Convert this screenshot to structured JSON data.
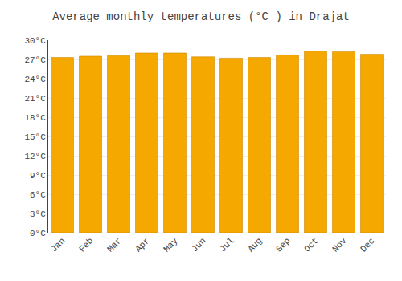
{
  "chart_data": {
    "type": "bar",
    "title": "Average monthly temperatures (°C ) in Drajat",
    "categories": [
      "Jan",
      "Feb",
      "Mar",
      "Apr",
      "May",
      "Jun",
      "Jul",
      "Aug",
      "Sep",
      "Oct",
      "Nov",
      "Dec"
    ],
    "values": [
      27.3,
      27.5,
      27.6,
      28.0,
      28.0,
      27.4,
      27.2,
      27.3,
      27.7,
      28.3,
      28.2,
      27.8
    ],
    "color": "#F5A800",
    "ylim": [
      0,
      30
    ],
    "yticks": [
      {
        "value": 0,
        "label": "0°C"
      },
      {
        "value": 3,
        "label": "3°C"
      },
      {
        "value": 6,
        "label": "6°C"
      },
      {
        "value": 9,
        "label": "9°C"
      },
      {
        "value": 12,
        "label": "12°C"
      },
      {
        "value": 15,
        "label": "15°C"
      },
      {
        "value": 18,
        "label": "18°C"
      },
      {
        "value": 21,
        "label": "21°C"
      },
      {
        "value": 24,
        "label": "24°C"
      },
      {
        "value": 27,
        "label": "27°C"
      },
      {
        "value": 30,
        "label": "30°C"
      }
    ],
    "grid": true
  }
}
